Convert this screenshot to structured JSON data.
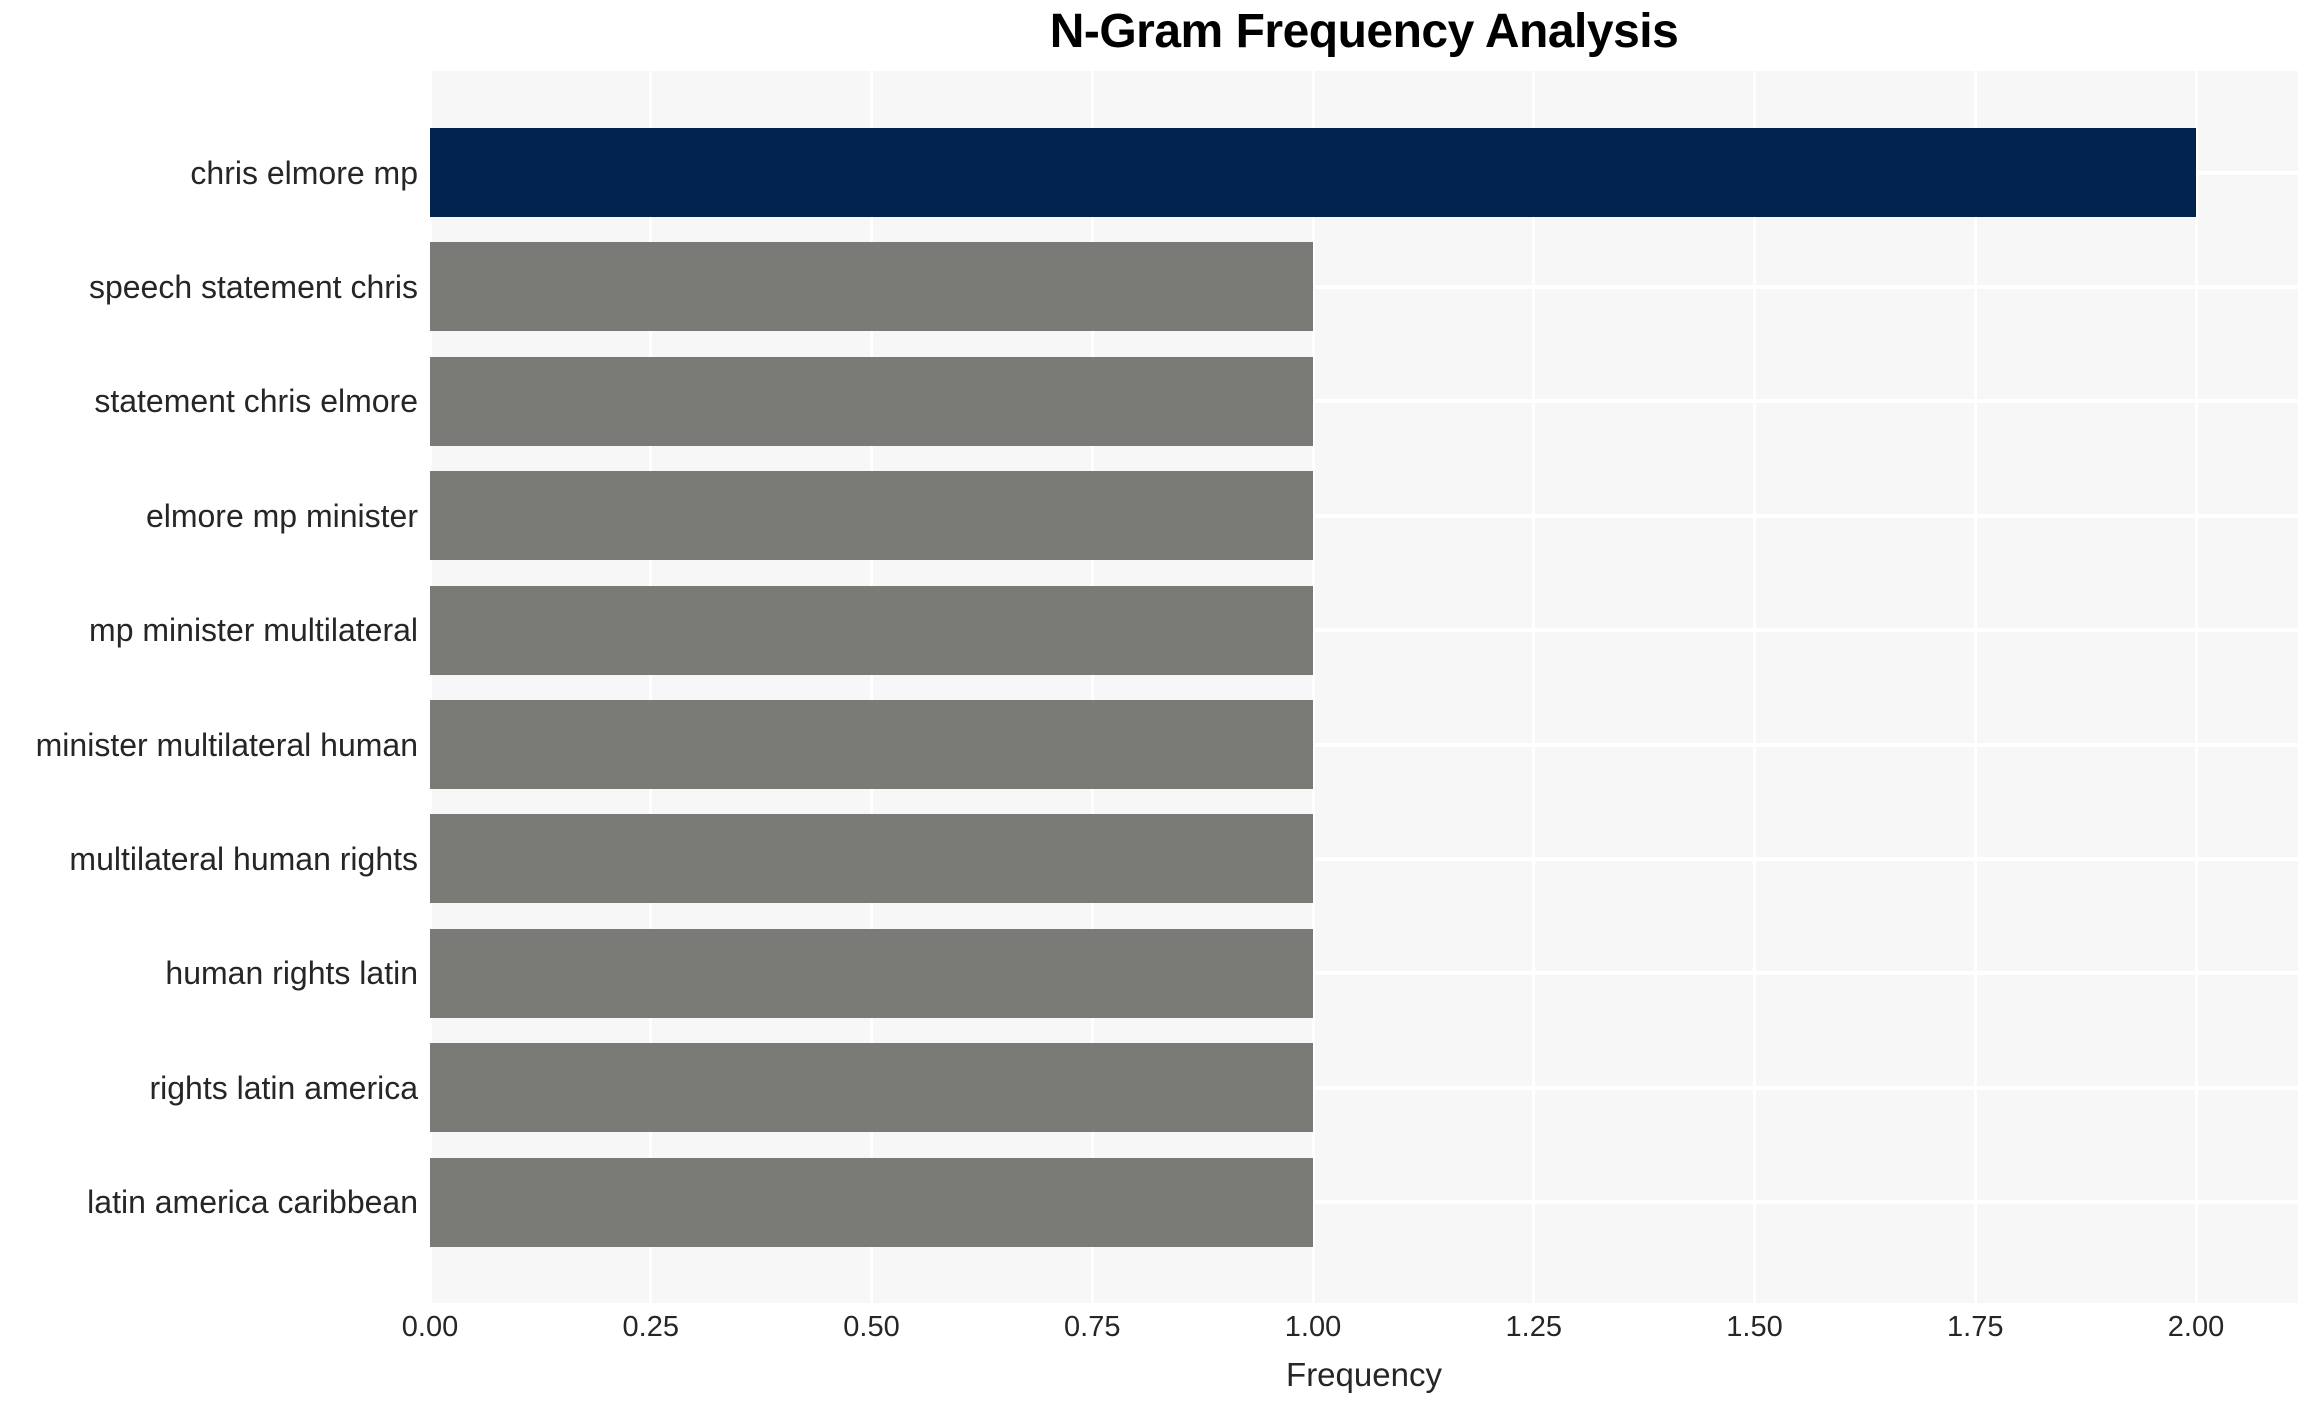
{
  "figure_title": "N-Gram Frequency Analysis",
  "chart_data": {
    "type": "bar",
    "orientation": "horizontal",
    "title": "N-Gram Frequency Analysis",
    "xlabel": "Frequency",
    "ylabel": "",
    "categories": [
      "chris elmore mp",
      "speech statement chris",
      "statement chris elmore",
      "elmore mp minister",
      "mp minister multilateral",
      "minister multilateral human",
      "multilateral human rights",
      "human rights latin",
      "rights latin america",
      "latin america caribbean"
    ],
    "values": [
      2,
      1,
      1,
      1,
      1,
      1,
      1,
      1,
      1,
      1
    ],
    "x_ticks": [
      {
        "value": 0.0,
        "label": "0.00"
      },
      {
        "value": 0.25,
        "label": "0.25"
      },
      {
        "value": 0.5,
        "label": "0.50"
      },
      {
        "value": 0.75,
        "label": "0.75"
      },
      {
        "value": 1.0,
        "label": "1.00"
      },
      {
        "value": 1.25,
        "label": "1.25"
      },
      {
        "value": 1.5,
        "label": "1.50"
      },
      {
        "value": 1.75,
        "label": "1.75"
      },
      {
        "value": 2.0,
        "label": "2.00"
      }
    ],
    "xlim": [
      0,
      2.115
    ],
    "grid": true,
    "legend_position": "none",
    "bar_colors": [
      "#02234d",
      "#7a7a77",
      "#7a7a77",
      "#7a7a77",
      "#7a7a77",
      "#7a7a77",
      "#7a7a77",
      "#7a7a77",
      "#7a7a77",
      "#7a7a77"
    ],
    "colors": {
      "bar_highlight": "#02234d",
      "bar_default": "#7a7a77",
      "plot_background": "#f7f7f7",
      "grid_line": "#ffffff",
      "tick_text": "#262626",
      "title_text": "#000000"
    }
  }
}
